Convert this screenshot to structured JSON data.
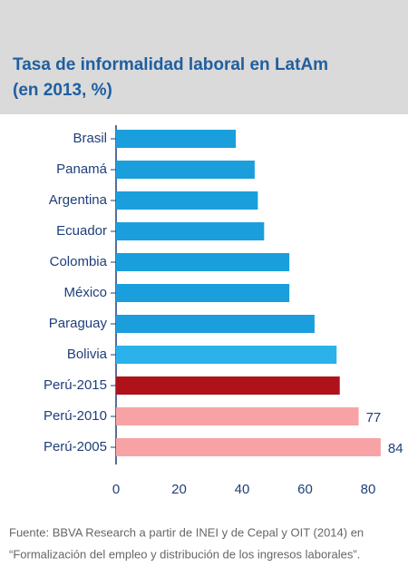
{
  "chart_data": {
    "type": "hbar",
    "title": "Tasa de informalidad laboral en LatAm",
    "subtitle": "(en 2013, %)",
    "categories": [
      "Brasil",
      "Panamá",
      "Argentina",
      "Ecuador",
      "Colombia",
      "México",
      "Paraguay",
      "Bolivia",
      "Perú-2015",
      "Perú-2010",
      "Perú-2005"
    ],
    "values": [
      38,
      44,
      45,
      47,
      55,
      55,
      63,
      70,
      71,
      77,
      84
    ],
    "value_labels": [
      null,
      null,
      null,
      null,
      null,
      null,
      null,
      null,
      null,
      "77",
      "84"
    ],
    "colors": [
      "#1a9fdc",
      "#1a9fdc",
      "#1a9fdc",
      "#1a9fdc",
      "#1a9fdc",
      "#1a9fdc",
      "#1a9fdc",
      "#2bb2ea",
      "#b0121b",
      "#f7a3a6",
      "#f7a3a6"
    ],
    "xlim": [
      0,
      84
    ],
    "xticks": [
      0,
      20,
      40,
      60,
      80
    ],
    "grid": false,
    "source": [
      "Fuente: BBVA Research a partir de INEI y de Cepal y OIT (2014) en",
      "“Formalización del empleo y distribución de los ingresos laborales”."
    ]
  }
}
